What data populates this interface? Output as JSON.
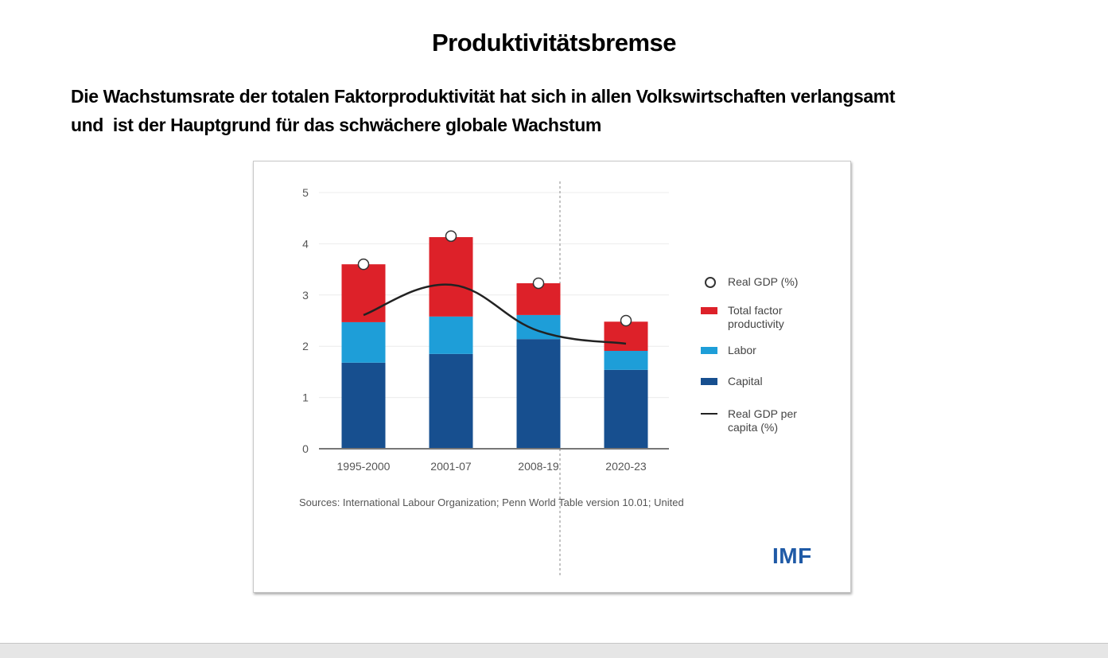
{
  "slide": {
    "title": "Produktivitätsbremse",
    "subtitle": "Die Wachstumsrate der totalen Faktorproduktivität hat sich in allen Volkswirtschaften verlangsamt\nund  ist der Hauptgrund für das schwächere globale Wachstum"
  },
  "colors": {
    "tfp": "#dd2129",
    "labor": "#1e9ed8",
    "capital": "#174f8f",
    "line": "#222222",
    "gridline": "#ececec",
    "axis": "#777777",
    "imf_blue": "#1f5aa6"
  },
  "chart_data": {
    "type": "bar",
    "stacked": true,
    "title": "",
    "xlabel": "",
    "ylabel": "",
    "categories": [
      "1995-2000",
      "2001-07",
      "2008-19",
      "2020-23"
    ],
    "ylim": [
      0,
      5
    ],
    "yticks": [
      "0",
      "1",
      "2",
      "3",
      "4",
      "5"
    ],
    "grid": true,
    "series": [
      {
        "name": "Capital",
        "key": "capital",
        "values": [
          1.68,
          1.85,
          2.14,
          1.54
        ]
      },
      {
        "name": "Labor",
        "key": "labor",
        "values": [
          0.79,
          0.73,
          0.47,
          0.37
        ]
      },
      {
        "name": "Total factor productivity",
        "key": "tfp",
        "values": [
          1.13,
          1.55,
          0.62,
          0.57
        ]
      }
    ],
    "markers": {
      "name": "Real GDP (%)",
      "values": [
        3.6,
        4.15,
        3.23,
        2.5
      ]
    },
    "line": {
      "name": "Real GDP per capita (%)",
      "values": [
        2.61,
        3.2,
        2.3,
        2.05
      ]
    },
    "legend": {
      "position": "right",
      "items": [
        {
          "label": "Real GDP (%)",
          "type": "circle"
        },
        {
          "label": "Total factor productivity",
          "type": "tfp"
        },
        {
          "label": "Labor",
          "type": "labor"
        },
        {
          "label": "Capital",
          "type": "capital"
        },
        {
          "label": "Real GDP per capita (%)",
          "type": "line"
        }
      ]
    },
    "sources": "Sources: International Labour Organization; Penn World Table version 10.01; United",
    "logo": "IMF"
  }
}
